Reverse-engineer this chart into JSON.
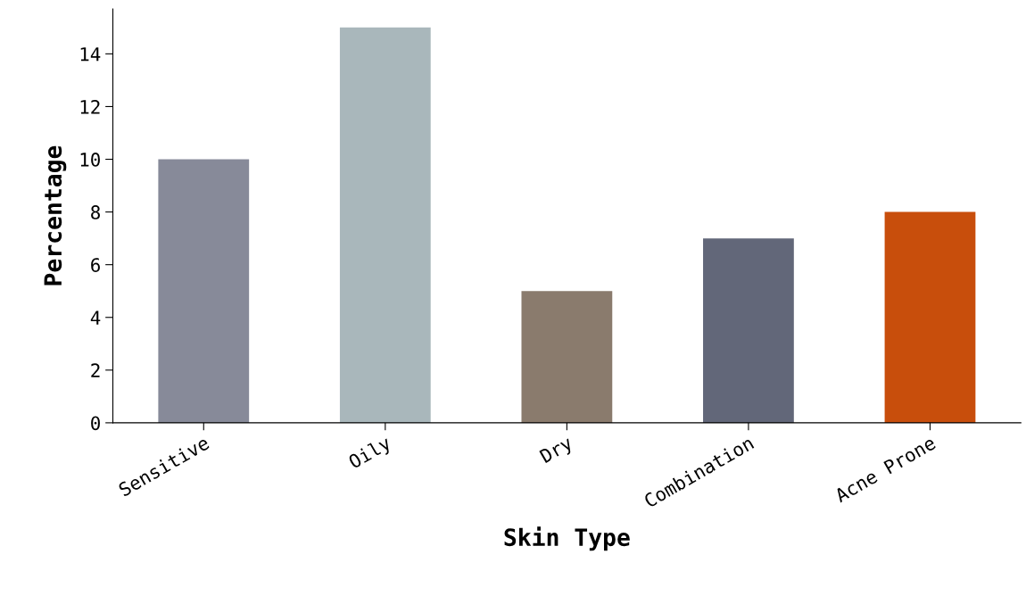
{
  "chart_data": {
    "type": "bar",
    "xlabel": "Skin Type",
    "ylabel": "Percentage",
    "categories": [
      "Sensitive",
      "Oily",
      "Dry",
      "Combination",
      "Acne Prone"
    ],
    "values": [
      10,
      15,
      5,
      7,
      8
    ],
    "colors": [
      "#878a99",
      "#a9b7bb",
      "#8a7b6d",
      "#626779",
      "#c84e0c"
    ],
    "ylim": [
      0,
      15.7
    ],
    "yticks": [
      0,
      2,
      4,
      6,
      8,
      10,
      12,
      14
    ],
    "grid": false,
    "legend": false
  }
}
